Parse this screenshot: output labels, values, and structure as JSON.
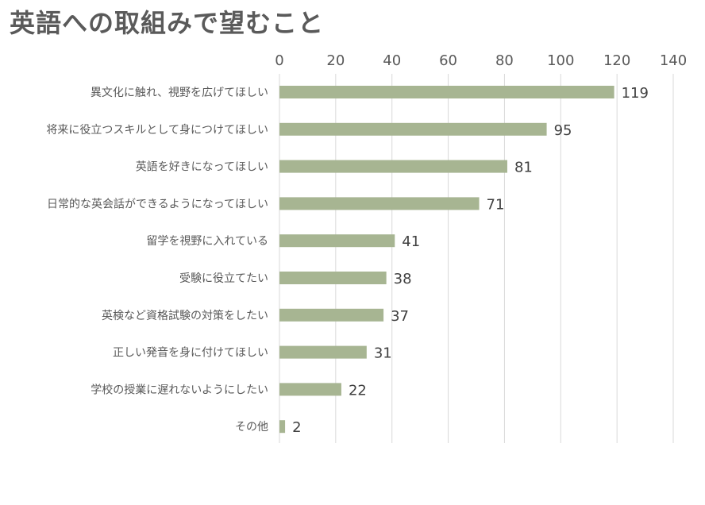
{
  "chart_data": {
    "type": "bar",
    "orientation": "horizontal",
    "title": "英語への取組みで望むこと",
    "categories": [
      "異文化に触れ、視野を広げてほしい",
      "将来に役立つスキルとして身につけてほしい",
      "英語を好きになってほしい",
      "日常的な英会話ができるようになってほしい",
      "留学を視野に入れている",
      "受験に役立てたい",
      "英検など資格試験の対策をしたい",
      "正しい発音を身に付けてほしい",
      "学校の授業に遅れないようにしたい",
      "その他"
    ],
    "values": [
      119,
      95,
      81,
      71,
      41,
      38,
      37,
      31,
      22,
      2
    ],
    "xlim": [
      0,
      140
    ],
    "xticks": [
      0,
      20,
      40,
      60,
      80,
      100,
      120,
      140
    ],
    "grid": true,
    "data_labels": true,
    "bar_color": "#a7b592",
    "gridline_color": "#d9d9d9",
    "text_color": "#595959"
  }
}
